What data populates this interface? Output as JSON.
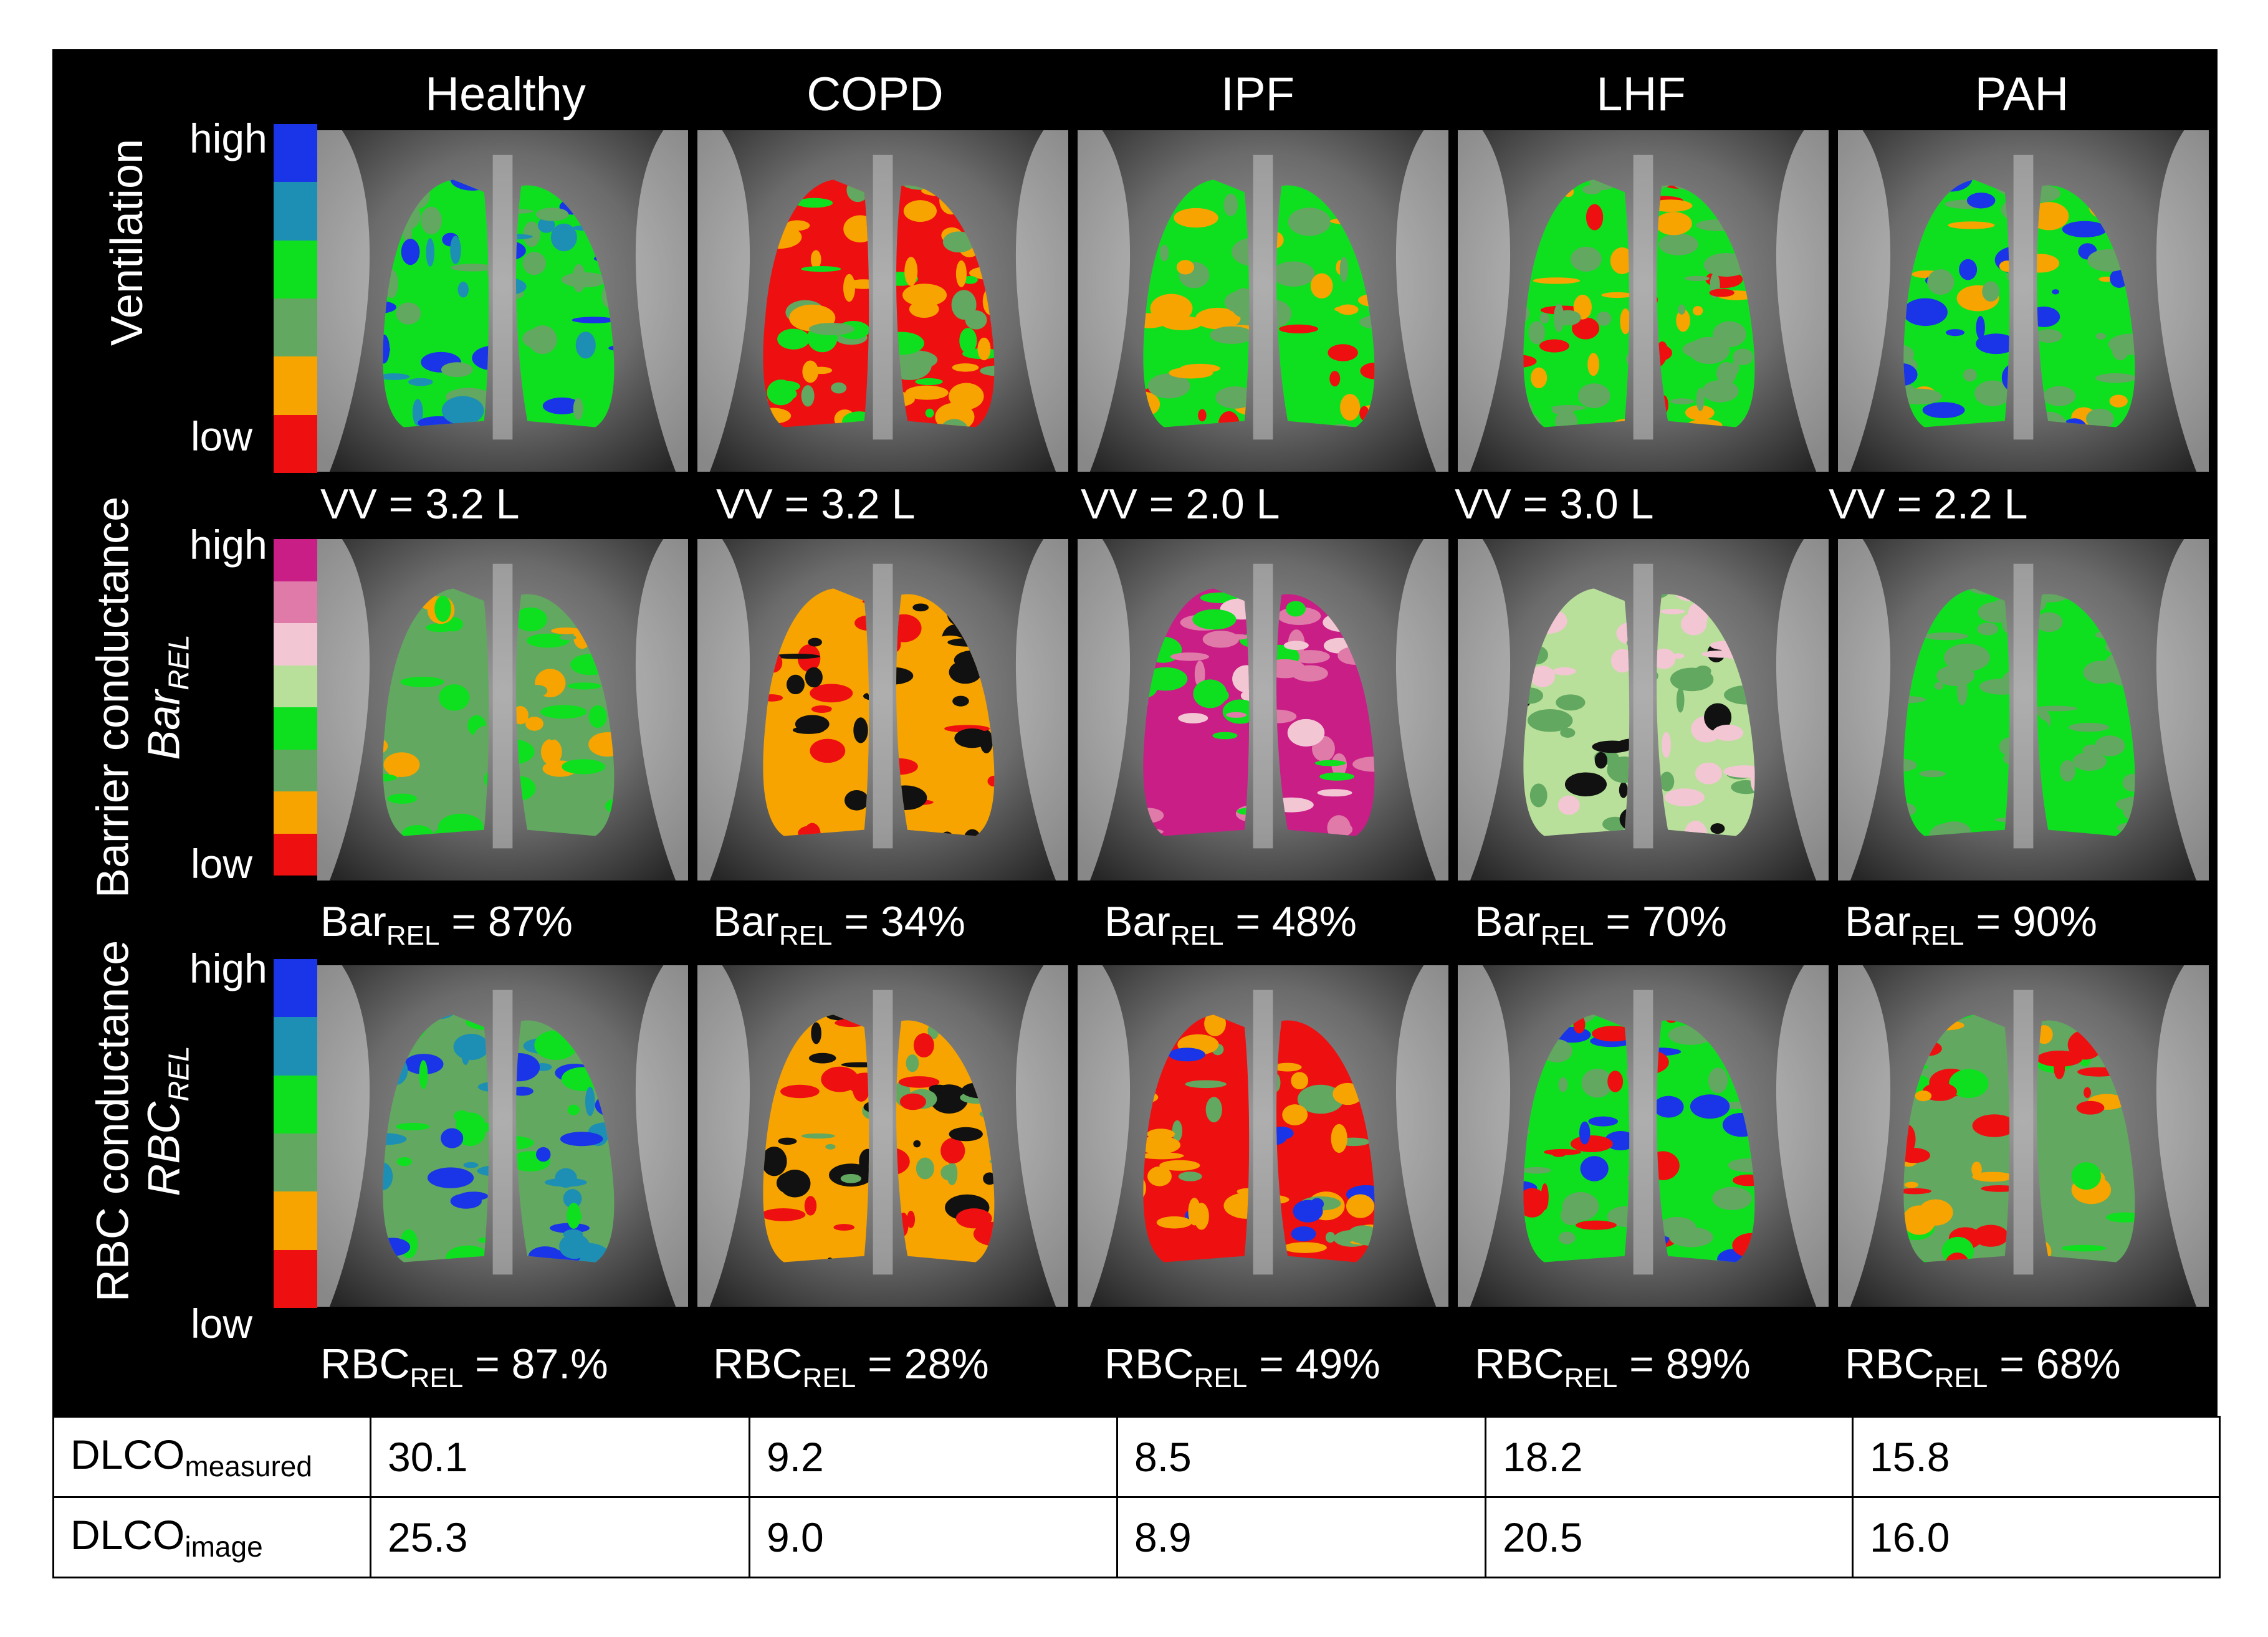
{
  "columns": [
    "Healthy",
    "COPD",
    "IPF",
    "LHF",
    "PAH"
  ],
  "rows": [
    {
      "id": "ventilation",
      "label": "Ventilation",
      "sub_label": "",
      "high": "high",
      "low": "low",
      "colorbar": [
        "#1a35e8",
        "#1d8fb4",
        "#0ee020",
        "#62a860",
        "#f7a400",
        "#ee1010"
      ],
      "metric_prefix": "VV",
      "metric_sub": "",
      "metrics": [
        "VV = 3.2 L",
        "VV = 3.2 L",
        "VV = 2.0 L",
        "VV = 3.0 L",
        "VV = 2.2 L"
      ]
    },
    {
      "id": "barrier",
      "label": "Barrier conductance",
      "sub_label_base": "Bar",
      "sub_label_sub": "REL",
      "high": "high",
      "low": "low",
      "colorbar": [
        "#c81e86",
        "#e07aa8",
        "#f3c6d4",
        "#b8e09a",
        "#0ee020",
        "#62a860",
        "#f7a400",
        "#ee1010"
      ],
      "metric_prefix": "Bar",
      "metric_sub": "REL",
      "metrics": [
        " = 87%",
        " = 34%",
        " = 48%",
        " = 70%",
        " = 90%"
      ]
    },
    {
      "id": "rbc",
      "label": "RBC conductance",
      "sub_label_base": "RBC",
      "sub_label_sub": "REL",
      "high": "high",
      "low": "low",
      "colorbar": [
        "#1a35e8",
        "#1d8fb4",
        "#0ee020",
        "#62a860",
        "#f7a400",
        "#ee1010"
      ],
      "metric_prefix": "RBC",
      "metric_sub": "REL",
      "metrics": [
        " = 87.%",
        " = 28%",
        " = 49%",
        " = 89%",
        " = 68%"
      ]
    }
  ],
  "palettes": {
    "ventilation": [
      [
        "#0ee020",
        "#62a860",
        "#1a35e8",
        "#1d8fb4"
      ],
      [
        "#ee1010",
        "#f7a400",
        "#62a860",
        "#0ee020"
      ],
      [
        "#0ee020",
        "#62a860",
        "#f7a400",
        "#ee1010"
      ],
      [
        "#0ee020",
        "#62a860",
        "#f7a400",
        "#ee1010"
      ],
      [
        "#0ee020",
        "#62a860",
        "#1a35e8",
        "#f7a400"
      ]
    ],
    "barrier": [
      [
        "#62a860",
        "#0ee020",
        "#f7a400",
        "#62a860"
      ],
      [
        "#f7a400",
        "#111111",
        "#ee1010",
        "#f7a400"
      ],
      [
        "#c81e86",
        "#e07aa8",
        "#f3c6d4",
        "#0ee020"
      ],
      [
        "#b8e09a",
        "#f3c6d4",
        "#62a860",
        "#111111"
      ],
      [
        "#0ee020",
        "#62a860",
        "#0ee020",
        "#62a860"
      ]
    ],
    "rbc": [
      [
        "#62a860",
        "#0ee020",
        "#1d8fb4",
        "#1a35e8"
      ],
      [
        "#f7a400",
        "#111111",
        "#ee1010",
        "#62a860"
      ],
      [
        "#ee1010",
        "#f7a400",
        "#62a860",
        "#1a35e8"
      ],
      [
        "#0ee020",
        "#62a860",
        "#1a35e8",
        "#ee1010"
      ],
      [
        "#62a860",
        "#f7a400",
        "#0ee020",
        "#ee1010"
      ]
    ]
  },
  "table": {
    "rows": [
      {
        "base": "DLCO",
        "sub": "measured",
        "values": [
          "30.1",
          "9.2",
          "8.5",
          "18.2",
          "15.8"
        ]
      },
      {
        "base": "DLCO",
        "sub": "image",
        "values": [
          "25.3",
          "9.0",
          "8.9",
          "20.5",
          "16.0"
        ]
      }
    ]
  }
}
